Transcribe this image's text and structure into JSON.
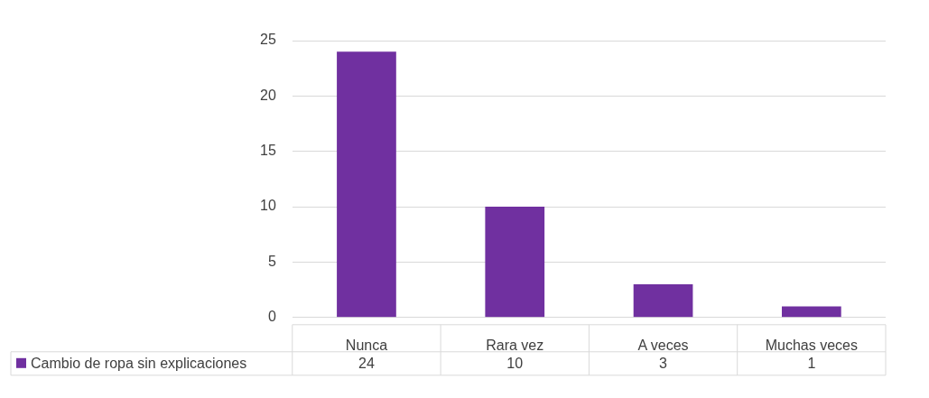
{
  "chart_data": {
    "type": "bar",
    "categories": [
      "Nunca",
      "Rara vez",
      "A veces",
      "Muchas veces"
    ],
    "series": [
      {
        "name": "Cambio de ropa sin explicaciones",
        "color": "#7030a0",
        "values": [
          24,
          10,
          3,
          1
        ]
      }
    ],
    "ylim": [
      0,
      25
    ],
    "yticks": [
      0,
      5,
      10,
      15,
      20,
      25
    ],
    "grid": "y",
    "legend": "bottom",
    "data_labels": true
  }
}
